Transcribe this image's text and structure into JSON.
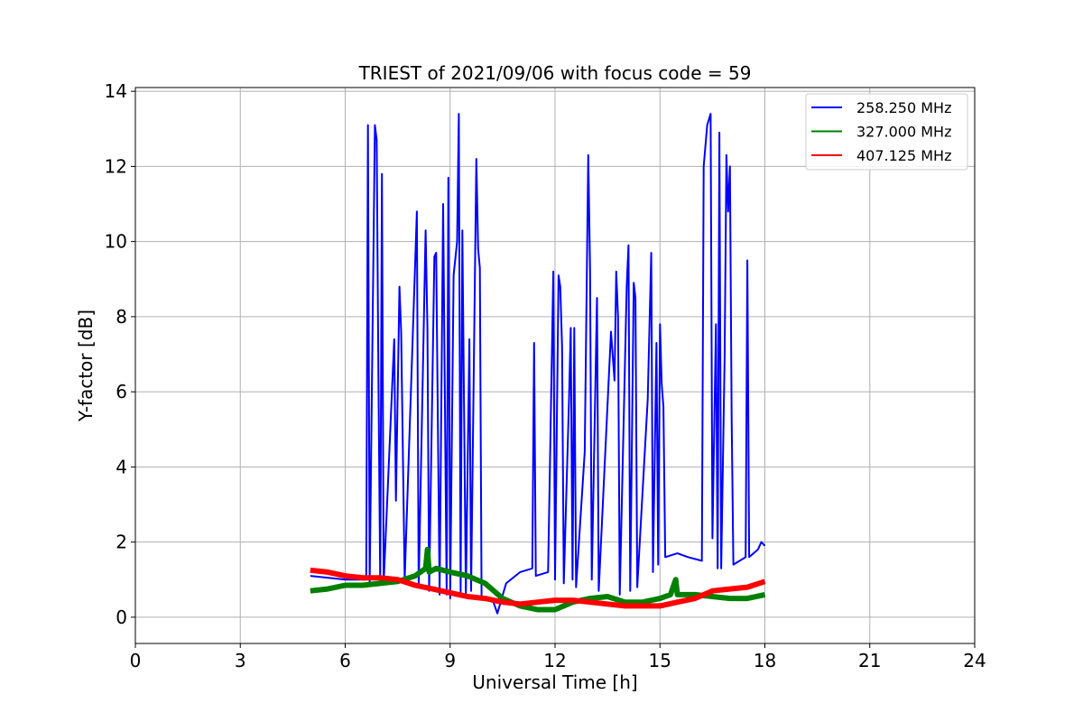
{
  "chart_data": {
    "type": "line",
    "title": "TRIEST of 2021/09/06 with focus code = 59",
    "xlabel": "Universal Time [h]",
    "ylabel": "Y-factor [dB]",
    "xlim": [
      0,
      24
    ],
    "ylim": [
      -0.7,
      14.1
    ],
    "xticks": [
      0,
      3,
      6,
      9,
      12,
      15,
      18,
      21,
      24
    ],
    "xtick_labels": [
      "0",
      "3",
      "6",
      "9",
      "12",
      "15",
      "18",
      "21",
      "24"
    ],
    "yticks": [
      0,
      2,
      4,
      6,
      8,
      10,
      12,
      14
    ],
    "ytick_labels": [
      "0",
      "2",
      "4",
      "6",
      "8",
      "10",
      "12",
      "14"
    ],
    "grid": true,
    "legend_position": "top-right",
    "series": [
      {
        "name": "258.250 MHz",
        "color": "#0000ff",
        "points": [
          [
            5.0,
            1.1
          ],
          [
            6.0,
            1.0
          ],
          [
            6.6,
            1.0
          ],
          [
            6.65,
            13.1
          ],
          [
            6.7,
            0.9
          ],
          [
            6.85,
            13.1
          ],
          [
            6.9,
            12.7
          ],
          [
            6.95,
            6.4
          ],
          [
            7.0,
            0.9
          ],
          [
            7.05,
            11.8
          ],
          [
            7.1,
            0.9
          ],
          [
            7.4,
            7.4
          ],
          [
            7.45,
            3.1
          ],
          [
            7.55,
            8.8
          ],
          [
            7.6,
            7.6
          ],
          [
            7.7,
            1.0
          ],
          [
            8.05,
            10.8
          ],
          [
            8.1,
            0.8
          ],
          [
            8.3,
            10.3
          ],
          [
            8.35,
            7.7
          ],
          [
            8.4,
            0.7
          ],
          [
            8.55,
            9.6
          ],
          [
            8.6,
            9.7
          ],
          [
            8.7,
            0.6
          ],
          [
            8.8,
            11.0
          ],
          [
            8.9,
            0.6
          ],
          [
            8.95,
            11.7
          ],
          [
            9.0,
            0.5
          ],
          [
            9.1,
            9.1
          ],
          [
            9.2,
            10.0
          ],
          [
            9.25,
            13.4
          ],
          [
            9.3,
            0.6
          ],
          [
            9.35,
            10.3
          ],
          [
            9.45,
            0.6
          ],
          [
            9.55,
            7.4
          ],
          [
            9.6,
            0.7
          ],
          [
            9.75,
            12.2
          ],
          [
            9.8,
            9.8
          ],
          [
            9.85,
            9.3
          ],
          [
            9.9,
            0.5
          ],
          [
            10.2,
            0.5
          ],
          [
            10.35,
            0.1
          ],
          [
            10.6,
            0.9
          ],
          [
            11.0,
            1.2
          ],
          [
            11.35,
            1.3
          ],
          [
            11.4,
            7.3
          ],
          [
            11.45,
            1.1
          ],
          [
            11.8,
            1.2
          ],
          [
            11.95,
            9.2
          ],
          [
            12.0,
            1.0
          ],
          [
            12.1,
            9.1
          ],
          [
            12.15,
            8.8
          ],
          [
            12.2,
            7.2
          ],
          [
            12.25,
            0.9
          ],
          [
            12.4,
            5.8
          ],
          [
            12.45,
            7.7
          ],
          [
            12.5,
            1.0
          ],
          [
            12.55,
            7.7
          ],
          [
            12.6,
            0.8
          ],
          [
            12.85,
            4.4
          ],
          [
            12.95,
            12.3
          ],
          [
            13.0,
            9.3
          ],
          [
            13.05,
            1.0
          ],
          [
            13.2,
            8.5
          ],
          [
            13.25,
            0.7
          ],
          [
            13.6,
            7.6
          ],
          [
            13.7,
            6.3
          ],
          [
            13.75,
            9.2
          ],
          [
            13.8,
            8.0
          ],
          [
            13.85,
            0.6
          ],
          [
            14.05,
            8.8
          ],
          [
            14.1,
            9.9
          ],
          [
            14.15,
            0.7
          ],
          [
            14.25,
            8.9
          ],
          [
            14.3,
            8.5
          ],
          [
            14.35,
            0.8
          ],
          [
            14.65,
            5.8
          ],
          [
            14.75,
            9.7
          ],
          [
            14.8,
            1.2
          ],
          [
            14.9,
            7.3
          ],
          [
            14.95,
            1.4
          ],
          [
            15.0,
            7.8
          ],
          [
            15.05,
            6.2
          ],
          [
            15.1,
            5.6
          ],
          [
            15.15,
            1.6
          ],
          [
            15.5,
            1.7
          ],
          [
            15.8,
            1.6
          ],
          [
            16.2,
            1.5
          ],
          [
            16.25,
            12.0
          ],
          [
            16.35,
            13.1
          ],
          [
            16.45,
            13.4
          ],
          [
            16.5,
            2.1
          ],
          [
            16.6,
            7.8
          ],
          [
            16.65,
            1.3
          ],
          [
            16.7,
            12.9
          ],
          [
            16.75,
            1.3
          ],
          [
            16.85,
            6.9
          ],
          [
            16.9,
            12.3
          ],
          [
            16.95,
            10.8
          ],
          [
            17.0,
            12.0
          ],
          [
            17.05,
            5.3
          ],
          [
            17.1,
            1.4
          ],
          [
            17.45,
            1.6
          ],
          [
            17.5,
            9.5
          ],
          [
            17.55,
            1.6
          ],
          [
            17.8,
            1.8
          ],
          [
            17.9,
            2.0
          ],
          [
            18.0,
            1.9
          ]
        ]
      },
      {
        "name": "327.000 MHz",
        "color": "#008000",
        "points": [
          [
            5.0,
            0.7
          ],
          [
            5.5,
            0.75
          ],
          [
            6.0,
            0.85
          ],
          [
            6.5,
            0.85
          ],
          [
            7.0,
            0.9
          ],
          [
            7.5,
            0.95
          ],
          [
            8.0,
            1.1
          ],
          [
            8.3,
            1.3
          ],
          [
            8.35,
            1.8
          ],
          [
            8.4,
            1.2
          ],
          [
            8.6,
            1.3
          ],
          [
            9.0,
            1.2
          ],
          [
            9.5,
            1.1
          ],
          [
            10.0,
            0.9
          ],
          [
            10.5,
            0.5
          ],
          [
            11.0,
            0.3
          ],
          [
            11.5,
            0.2
          ],
          [
            12.0,
            0.2
          ],
          [
            12.5,
            0.4
          ],
          [
            13.0,
            0.5
          ],
          [
            13.5,
            0.55
          ],
          [
            14.0,
            0.4
          ],
          [
            14.5,
            0.4
          ],
          [
            15.0,
            0.5
          ],
          [
            15.3,
            0.6
          ],
          [
            15.45,
            1.0
          ],
          [
            15.5,
            0.6
          ],
          [
            16.0,
            0.6
          ],
          [
            16.5,
            0.55
          ],
          [
            17.0,
            0.5
          ],
          [
            17.5,
            0.5
          ],
          [
            18.0,
            0.6
          ]
        ]
      },
      {
        "name": "407.125 MHz",
        "color": "#ff0000",
        "points": [
          [
            5.0,
            1.25
          ],
          [
            5.5,
            1.2
          ],
          [
            6.0,
            1.1
          ],
          [
            6.5,
            1.05
          ],
          [
            7.0,
            1.05
          ],
          [
            7.5,
            1.0
          ],
          [
            8.0,
            0.85
          ],
          [
            8.5,
            0.75
          ],
          [
            9.0,
            0.65
          ],
          [
            9.5,
            0.55
          ],
          [
            10.0,
            0.5
          ],
          [
            10.5,
            0.4
          ],
          [
            11.0,
            0.35
          ],
          [
            11.5,
            0.4
          ],
          [
            12.0,
            0.45
          ],
          [
            12.5,
            0.45
          ],
          [
            13.0,
            0.4
          ],
          [
            13.5,
            0.35
          ],
          [
            14.0,
            0.3
          ],
          [
            14.5,
            0.3
          ],
          [
            15.0,
            0.3
          ],
          [
            15.5,
            0.4
          ],
          [
            16.0,
            0.5
          ],
          [
            16.5,
            0.7
          ],
          [
            17.0,
            0.75
          ],
          [
            17.5,
            0.8
          ],
          [
            18.0,
            0.95
          ]
        ]
      }
    ]
  }
}
